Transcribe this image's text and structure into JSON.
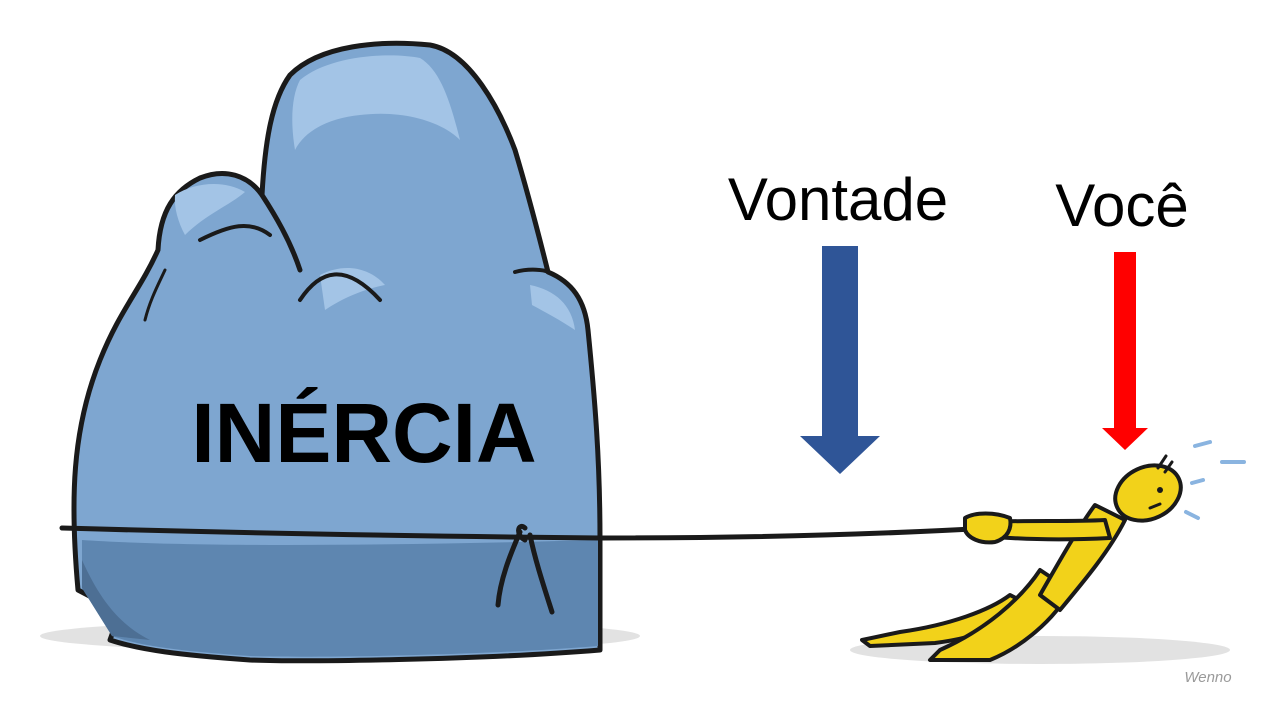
{
  "rock": {
    "label": "INÉRCIA",
    "colors": {
      "body": "#7ea6d0",
      "light": "#a3c4e6",
      "shade": "#5e86b0",
      "dark": "#4d6f94",
      "outline": "#1a1a1a"
    }
  },
  "arrows": [
    {
      "label": "Vontade",
      "color": "#2f5597"
    },
    {
      "label": "Você",
      "color": "#ff0000"
    }
  ],
  "figure": {
    "color": "#f2d21a",
    "outline": "#1a1a1a"
  },
  "signature": "Wenno"
}
